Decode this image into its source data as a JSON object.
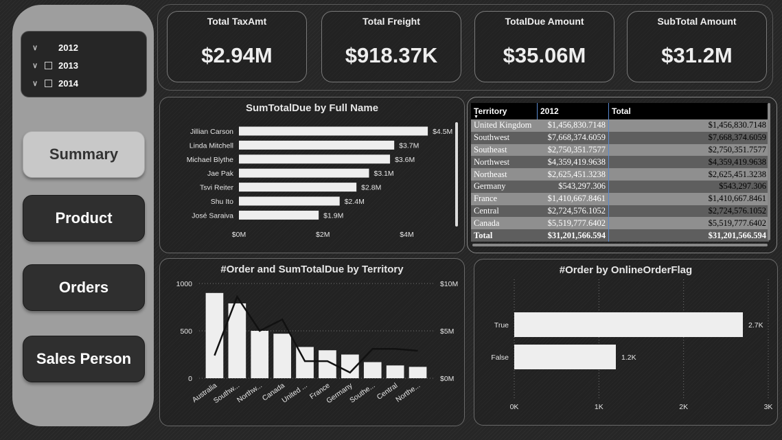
{
  "slicer": {
    "items": [
      {
        "label": "2012",
        "checked": true
      },
      {
        "label": "2013",
        "checked": false
      },
      {
        "label": "2014",
        "checked": false
      }
    ]
  },
  "nav": {
    "summary": "Summary",
    "product": "Product",
    "orders": "Orders",
    "sales_person": "Sales Person"
  },
  "kpis": [
    {
      "title": "Total TaxAmt",
      "value": "$2.94M"
    },
    {
      "title": "Total Freight",
      "value": "$918.37K"
    },
    {
      "title": "TotalDue Amount",
      "value": "$35.06M"
    },
    {
      "title": "SubTotal Amount",
      "value": "$31.2M"
    }
  ],
  "colors": {
    "background": "#262626",
    "left_panel": "#9e9e9e",
    "bar": "#eeeeee",
    "line": "#111111",
    "active_button": "#c8c8c8"
  },
  "table": {
    "headers": [
      "Territory",
      "2012",
      "Total"
    ],
    "rows": [
      {
        "territory": "United Kingdom",
        "y2012": "$1,456,830.7148",
        "total": "$1,456,830.7148",
        "bg": "#8f8f8f"
      },
      {
        "territory": "Southwest",
        "y2012": "$7,668,374.6059",
        "total": "$7,668,374.6059",
        "bg": "#5e5e5e"
      },
      {
        "territory": "Southeast",
        "y2012": "$2,750,351.7577",
        "total": "$2,750,351.7577",
        "bg": "#8f8f8f"
      },
      {
        "territory": "Northwest",
        "y2012": "$4,359,419.9638",
        "total": "$4,359,419.9638",
        "bg": "#5e5e5e"
      },
      {
        "territory": "Northeast",
        "y2012": "$2,625,451.3238",
        "total": "$2,625,451.3238",
        "bg": "#8f8f8f"
      },
      {
        "territory": "Germany",
        "y2012": "$543,297.306",
        "total": "$543,297.306",
        "bg": "#5e5e5e"
      },
      {
        "territory": "France",
        "y2012": "$1,410,667.8461",
        "total": "$1,410,667.8461",
        "bg": "#8f8f8f"
      },
      {
        "territory": "Central",
        "y2012": "$2,724,576.1052",
        "total": "$2,724,576.1052",
        "bg": "#5e5e5e"
      },
      {
        "territory": "Canada",
        "y2012": "$5,519,777.6402",
        "total": "$5,519,777.6402",
        "bg": "#8f8f8f"
      }
    ],
    "total_row": {
      "territory": "Total",
      "y2012": "$31,201,566.594",
      "total": "$31,201,566.594"
    }
  },
  "chart_data": [
    {
      "type": "bar",
      "orientation": "horizontal",
      "title": "SumTotalDue by Full Name",
      "categories": [
        "Jillian Carson",
        "Linda Mitchell",
        "Michael Blythe",
        "Jae Pak",
        "Tsvi Reiter",
        "Shu Ito",
        "José Saraiva"
      ],
      "values": [
        4.5,
        3.7,
        3.6,
        3.1,
        2.8,
        2.4,
        1.9
      ],
      "data_labels": [
        "$4.5M",
        "$3.7M",
        "$3.6M",
        "$3.1M",
        "$2.8M",
        "$2.4M",
        "$1.9M"
      ],
      "xticks": [
        "$0M",
        "$2M",
        "$4M"
      ],
      "xtick_values": [
        0,
        2,
        4
      ],
      "xlim": [
        0,
        5.3
      ],
      "unit": "$M"
    },
    {
      "type": "bar",
      "combo": "bar+line",
      "title": "#Order and SumTotalDue by Territory",
      "categories": [
        "Australia",
        "Southw...",
        "Northw...",
        "Canada",
        "United ...",
        "France",
        "Germany",
        "Southe...",
        "Central",
        "Northe..."
      ],
      "series": [
        {
          "axis": "left",
          "kind": "bar",
          "values": [
            900,
            790,
            500,
            470,
            330,
            295,
            250,
            170,
            135,
            120
          ]
        },
        {
          "axis": "right",
          "kind": "line",
          "values": [
            2.4,
            8.6,
            5.0,
            6.2,
            1.8,
            1.8,
            0.6,
            3.1,
            3.1,
            2.9
          ]
        }
      ],
      "yticks_left": [
        "0",
        "500",
        "1000"
      ],
      "yticks_left_values": [
        0,
        500,
        1000
      ],
      "yticks_right": [
        "$0M",
        "$5M",
        "$10M"
      ],
      "yticks_right_values": [
        0,
        5,
        10
      ],
      "ylim_left": [
        0,
        1000
      ],
      "ylim_right": [
        0,
        10
      ]
    },
    {
      "type": "bar",
      "orientation": "horizontal",
      "title": "#Order by OnlineOrderFlag",
      "categories": [
        "True",
        "False"
      ],
      "values": [
        2700,
        1200
      ],
      "data_labels": [
        "2.7K",
        "1.2K"
      ],
      "xticks": [
        "0K",
        "1K",
        "2K",
        "3K"
      ],
      "xtick_values": [
        0,
        1000,
        2000,
        3000
      ],
      "xlim": [
        0,
        3000
      ]
    }
  ]
}
